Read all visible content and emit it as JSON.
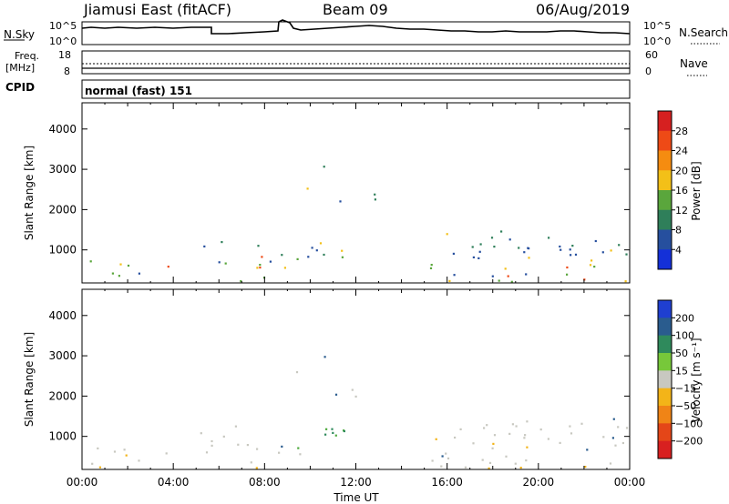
{
  "header": {
    "station": "Jiamusi East (fitACF)",
    "beam": "Beam 09",
    "date": "06/Aug/2019"
  },
  "top_strip": {
    "left_label": "N.Sky",
    "left_ticks": [
      "10^5",
      "10^0"
    ],
    "right_ticks": [
      "10^5",
      "10^0"
    ],
    "right_label": "N.Search"
  },
  "freq_strip": {
    "left_label_line1": "Freq.",
    "left_label_line2": "[MHz]",
    "left_ticks": [
      "18",
      "8"
    ],
    "right_ticks": [
      "60",
      "0"
    ],
    "right_label": "Nave"
  },
  "cpid": {
    "label": "CPID",
    "value": "normal (fast) 151"
  },
  "chart_data": [
    {
      "type": "heatmap",
      "title": "",
      "ylabel": "Slant Range [km]",
      "yticks": [
        "1000",
        "2000",
        "3000",
        "4000"
      ],
      "ylim": [
        180,
        4650
      ],
      "xlim": [
        0,
        24
      ],
      "colorbar": {
        "label": "Power [dB]",
        "ticks": [
          "28",
          "24",
          "20",
          "16",
          "12",
          "8",
          "4"
        ],
        "colors": [
          "#d62020",
          "#ee4a16",
          "#f58c10",
          "#f3c018",
          "#5aa63c",
          "#2f7f5a",
          "#264f9e",
          "#1430d8"
        ]
      }
    },
    {
      "type": "heatmap",
      "title": "",
      "ylabel": "Slant Range [km]",
      "yticks": [
        "1000",
        "2000",
        "3000",
        "4000"
      ],
      "ylim": [
        180,
        4650
      ],
      "xlim": [
        0,
        24
      ],
      "xlabel": "Time UT",
      "xticks": [
        "00:00",
        "04:00",
        "08:00",
        "12:00",
        "16:00",
        "20:00",
        "00:00"
      ],
      "colorbar": {
        "label": "Velocity [m s⁻¹]",
        "ticks": [
          "200",
          "100",
          "50",
          "15",
          "−15",
          "−50",
          "−100",
          "−200"
        ],
        "colors": [
          "#1f3fd0",
          "#2a5c8e",
          "#2f8a5c",
          "#77c83a",
          "#c8c8c0",
          "#f3b418",
          "#f08416",
          "#e44618",
          "#d82020"
        ]
      }
    }
  ]
}
